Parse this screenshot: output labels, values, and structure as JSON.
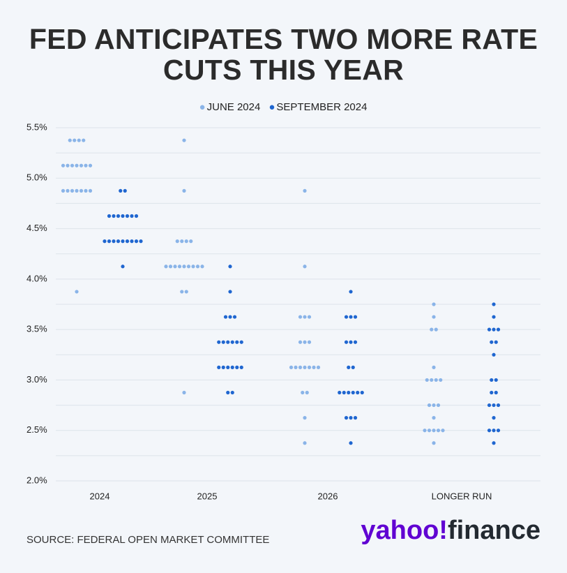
{
  "chart_data": {
    "type": "dot",
    "title": "FED ANTICIPATES TWO MORE RATE CUTS THIS YEAR",
    "categories": [
      "2024",
      "2025",
      "2026",
      "LONGER RUN"
    ],
    "series": [
      {
        "name": "JUNE 2024",
        "color": "#8ab4e8",
        "values": [
          [
            5.375,
            5.375,
            5.375,
            5.375,
            5.125,
            5.125,
            5.125,
            5.125,
            5.125,
            5.125,
            5.125,
            4.875,
            4.875,
            4.875,
            4.875,
            4.875,
            4.875,
            4.875,
            3.875
          ],
          [
            5.375,
            4.875,
            4.375,
            4.375,
            4.375,
            4.375,
            4.125,
            4.125,
            4.125,
            4.125,
            4.125,
            4.125,
            4.125,
            4.125,
            4.125,
            3.875,
            3.875,
            2.875
          ],
          [
            4.875,
            4.125,
            3.625,
            3.625,
            3.625,
            3.375,
            3.375,
            3.375,
            3.125,
            3.125,
            3.125,
            3.125,
            3.125,
            3.125,
            3.125,
            2.875,
            2.875,
            2.625,
            2.375
          ],
          [
            3.75,
            3.625,
            3.5,
            3.5,
            3.125,
            3.0,
            3.0,
            3.0,
            3.0,
            2.75,
            2.75,
            2.75,
            2.625,
            2.5,
            2.5,
            2.5,
            2.5,
            2.5,
            2.375
          ]
        ]
      },
      {
        "name": "SEPTEMBER 2024",
        "color": "#1f66d0",
        "values": [
          [
            4.875,
            4.875,
            4.625,
            4.625,
            4.625,
            4.625,
            4.625,
            4.625,
            4.625,
            4.375,
            4.375,
            4.375,
            4.375,
            4.375,
            4.375,
            4.375,
            4.375,
            4.375,
            4.125
          ],
          [
            4.125,
            3.875,
            3.625,
            3.625,
            3.625,
            3.375,
            3.375,
            3.375,
            3.375,
            3.375,
            3.375,
            3.125,
            3.125,
            3.125,
            3.125,
            3.125,
            3.125,
            2.875,
            2.875
          ],
          [
            3.875,
            3.625,
            3.625,
            3.625,
            3.375,
            3.375,
            3.375,
            3.125,
            3.125,
            2.875,
            2.875,
            2.875,
            2.875,
            2.875,
            2.875,
            2.625,
            2.625,
            2.625,
            2.375
          ],
          [
            3.75,
            3.625,
            3.5,
            3.5,
            3.5,
            3.375,
            3.375,
            3.25,
            3.0,
            3.0,
            2.875,
            2.875,
            2.75,
            2.75,
            2.75,
            2.625,
            2.5,
            2.5,
            2.5,
            2.375
          ]
        ]
      }
    ],
    "ylim": [
      2.0,
      5.5
    ],
    "yticks": [
      {
        "value": 2.0,
        "label": "2.0%"
      },
      {
        "value": 2.5,
        "label": "2.5%"
      },
      {
        "value": 3.0,
        "label": "3.0%"
      },
      {
        "value": 3.5,
        "label": "3.5%"
      },
      {
        "value": 4.0,
        "label": "4.0%"
      },
      {
        "value": 4.5,
        "label": "4.5%"
      },
      {
        "value": 5.0,
        "label": "5.0%"
      },
      {
        "value": 5.5,
        "label": "5.5%"
      }
    ],
    "grid_lines": [
      2.0,
      2.25,
      2.5,
      2.75,
      3.0,
      3.25,
      3.5,
      3.75,
      4.0,
      4.25,
      4.5,
      4.75,
      5.0,
      5.25,
      5.5
    ],
    "grid": true,
    "legend": "top",
    "source": "SOURCE: FEDERAL OPEN MARKET COMMITTEE",
    "logo": {
      "first": "yahoo!",
      "second": "finance"
    }
  }
}
